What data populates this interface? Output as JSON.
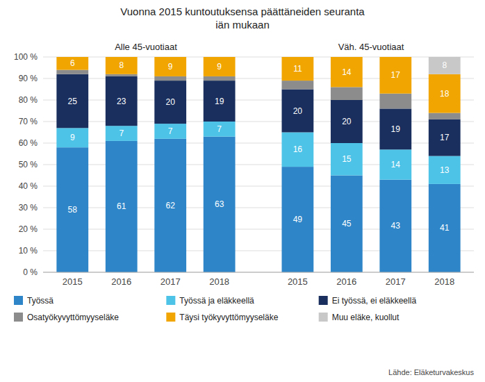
{
  "chart_data": {
    "type": "bar",
    "stacked": true,
    "title": "Vuonna 2015 kuntoutuksensa päättäneiden seuranta\niän mukaan",
    "annotations": [
      "Alle 45-vuotiaat",
      "Väh. 45-vuotiaat"
    ],
    "source": "Lähde: Eläketurvakeskus",
    "categories": [
      "2015",
      "2016",
      "2017",
      "2018",
      "2015",
      "2016",
      "2017",
      "2018"
    ],
    "series": [
      {
        "name": "Työssä",
        "color": "#2e86c8",
        "data_labels": true,
        "values": [
          58,
          61,
          62,
          63,
          49,
          45,
          43,
          41
        ]
      },
      {
        "name": "Työssä ja eläkkeellä",
        "color": "#4dc3e8",
        "data_labels": true,
        "values": [
          9,
          7,
          7,
          7,
          16,
          15,
          14,
          13
        ]
      },
      {
        "name": "Ei työssä, ei eläkkeellä",
        "color": "#1a2f5e",
        "data_labels": true,
        "values": [
          25,
          23,
          20,
          19,
          20,
          20,
          19,
          17
        ]
      },
      {
        "name": "Osatyökyvyttömyyseläke",
        "color": "#8c8c8c",
        "data_labels": false,
        "values": [
          2,
          1,
          2,
          2,
          4,
          6,
          7,
          3
        ]
      },
      {
        "name": "Täysi työkyvyttömyyseläke",
        "color": "#f0a500",
        "data_labels": true,
        "values": [
          6,
          8,
          9,
          9,
          11,
          14,
          17,
          18
        ]
      },
      {
        "name": "Muu eläke, kuollut",
        "color": "#c8c8c8",
        "data_labels": true,
        "values": [
          0,
          0,
          0,
          0,
          0,
          0,
          0,
          8
        ]
      }
    ],
    "ylim": [
      0,
      100
    ],
    "yticks": [
      {
        "value": 0,
        "label": "0 %"
      },
      {
        "value": 10,
        "label": "10 %"
      },
      {
        "value": 20,
        "label": "20 %"
      },
      {
        "value": 30,
        "label": "30 %"
      },
      {
        "value": 40,
        "label": "40 %"
      },
      {
        "value": 50,
        "label": "50 %"
      },
      {
        "value": 60,
        "label": "60 %"
      },
      {
        "value": 70,
        "label": "70 %"
      },
      {
        "value": 80,
        "label": "80 %"
      },
      {
        "value": 90,
        "label": "90 %"
      },
      {
        "value": 100,
        "label": "100 %"
      }
    ],
    "grid": true,
    "legend": "bottom"
  }
}
